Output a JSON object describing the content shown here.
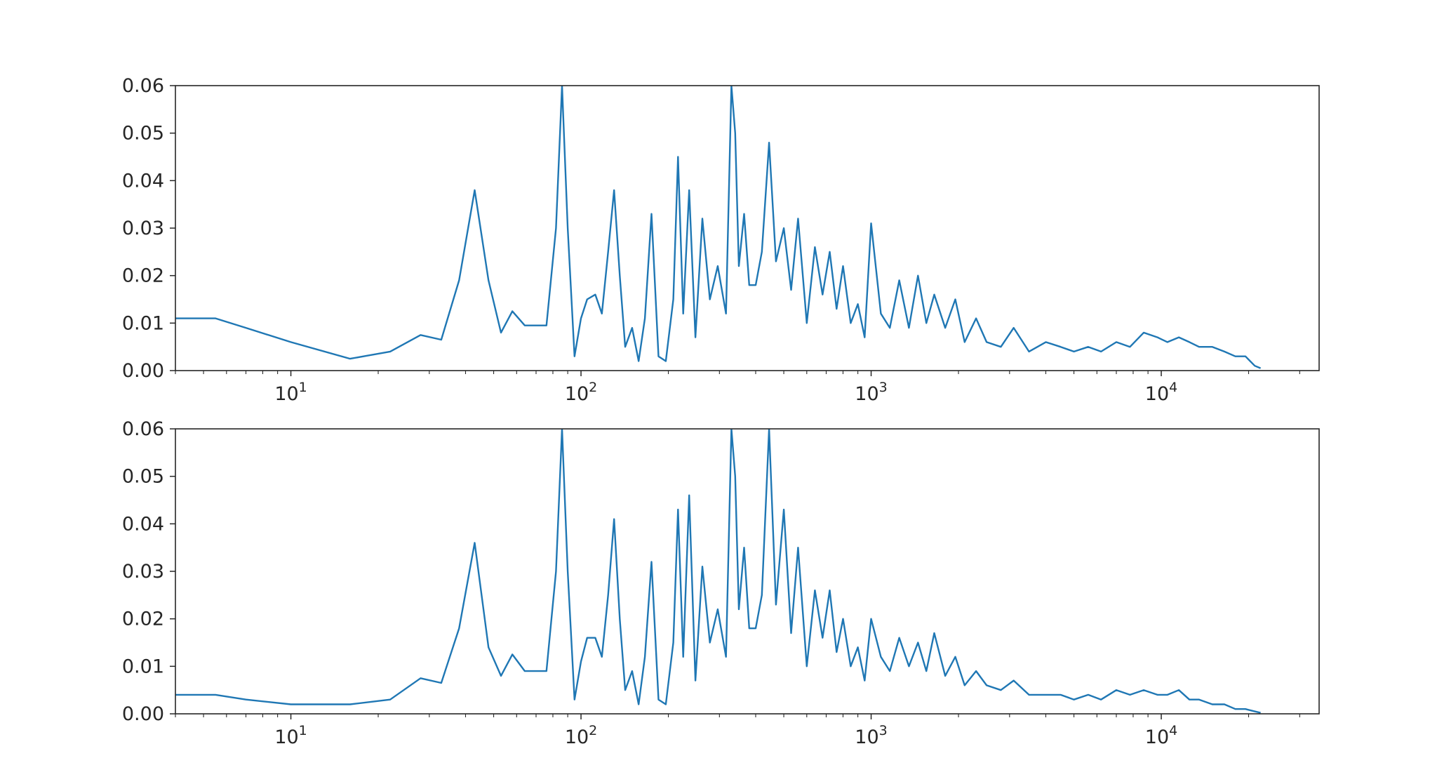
{
  "chart_data": [
    {
      "type": "line",
      "title": "",
      "xlabel": "",
      "ylabel": "",
      "xscale": "log",
      "xlim": [
        4,
        35000
      ],
      "ylim": [
        0,
        0.06
      ],
      "yticks": [
        "0.00",
        "0.01",
        "0.02",
        "0.03",
        "0.04",
        "0.05",
        "0.06"
      ],
      "xticks": [
        {
          "base": "10",
          "exp": "1"
        },
        {
          "base": "10",
          "exp": "2"
        },
        {
          "base": "10",
          "exp": "3"
        },
        {
          "base": "10",
          "exp": "4"
        }
      ],
      "grid": false,
      "color": "#1f77b4",
      "x": [
        4,
        5.5,
        7,
        10,
        16,
        22,
        28,
        33,
        38,
        43,
        48,
        53,
        58,
        64,
        70,
        76,
        82,
        86,
        90,
        95,
        100,
        105,
        112,
        118,
        124,
        130,
        136,
        142,
        150,
        158,
        166,
        175,
        185,
        196,
        208,
        216,
        225,
        236,
        248,
        262,
        278,
        296,
        316,
        330,
        340,
        350,
        365,
        380,
        400,
        420,
        445,
        470,
        500,
        530,
        560,
        600,
        640,
        680,
        720,
        760,
        800,
        850,
        900,
        950,
        1000,
        1080,
        1160,
        1250,
        1350,
        1450,
        1550,
        1650,
        1800,
        1950,
        2100,
        2300,
        2500,
        2800,
        3100,
        3500,
        4000,
        4500,
        5000,
        5600,
        6200,
        7000,
        7800,
        8700,
        9700,
        10500,
        11500,
        12500,
        13500,
        15000,
        16500,
        18000,
        19500,
        21000,
        22000
      ],
      "series": [
        {
          "values": [
            0.011,
            0.011,
            0.009,
            0.006,
            0.0025,
            0.004,
            0.0075,
            0.0065,
            0.019,
            0.038,
            0.019,
            0.008,
            0.0125,
            0.0095,
            0.0095,
            0.0095,
            0.03,
            0.06,
            0.03,
            0.003,
            0.011,
            0.015,
            0.016,
            0.012,
            0.025,
            0.038,
            0.02,
            0.005,
            0.009,
            0.002,
            0.011,
            0.033,
            0.003,
            0.002,
            0.015,
            0.045,
            0.012,
            0.038,
            0.007,
            0.032,
            0.015,
            0.022,
            0.012,
            0.06,
            0.05,
            0.022,
            0.033,
            0.018,
            0.018,
            0.025,
            0.048,
            0.023,
            0.03,
            0.017,
            0.032,
            0.01,
            0.026,
            0.016,
            0.025,
            0.013,
            0.022,
            0.01,
            0.014,
            0.007,
            0.031,
            0.012,
            0.009,
            0.019,
            0.009,
            0.02,
            0.01,
            0.016,
            0.009,
            0.015,
            0.006,
            0.011,
            0.006,
            0.005,
            0.009,
            0.004,
            0.006,
            0.005,
            0.004,
            0.005,
            0.004,
            0.006,
            0.005,
            0.008,
            0.007,
            0.006,
            0.007,
            0.006,
            0.005,
            0.005,
            0.004,
            0.003,
            0.003,
            0.001,
            0.0005
          ]
        }
      ]
    },
    {
      "type": "line",
      "title": "",
      "xlabel": "",
      "ylabel": "",
      "xscale": "log",
      "xlim": [
        4,
        35000
      ],
      "ylim": [
        0,
        0.06
      ],
      "yticks": [
        "0.00",
        "0.01",
        "0.02",
        "0.03",
        "0.04",
        "0.05",
        "0.06"
      ],
      "xticks": [
        {
          "base": "10",
          "exp": "1"
        },
        {
          "base": "10",
          "exp": "2"
        },
        {
          "base": "10",
          "exp": "3"
        },
        {
          "base": "10",
          "exp": "4"
        }
      ],
      "grid": false,
      "color": "#1f77b4",
      "x": [
        4,
        5.5,
        7,
        10,
        16,
        22,
        28,
        33,
        38,
        43,
        48,
        53,
        58,
        64,
        70,
        76,
        82,
        86,
        90,
        95,
        100,
        105,
        112,
        118,
        124,
        130,
        136,
        142,
        150,
        158,
        166,
        175,
        185,
        196,
        208,
        216,
        225,
        236,
        248,
        262,
        278,
        296,
        316,
        330,
        340,
        350,
        365,
        380,
        400,
        420,
        445,
        470,
        500,
        530,
        560,
        600,
        640,
        680,
        720,
        760,
        800,
        850,
        900,
        950,
        1000,
        1080,
        1160,
        1250,
        1350,
        1450,
        1550,
        1650,
        1800,
        1950,
        2100,
        2300,
        2500,
        2800,
        3100,
        3500,
        4000,
        4500,
        5000,
        5600,
        6200,
        7000,
        7800,
        8700,
        9700,
        10500,
        11500,
        12500,
        13500,
        15000,
        16500,
        18000,
        19500,
        21000,
        22000
      ],
      "series": [
        {
          "values": [
            0.004,
            0.004,
            0.003,
            0.002,
            0.002,
            0.003,
            0.0075,
            0.0065,
            0.018,
            0.036,
            0.014,
            0.008,
            0.0125,
            0.009,
            0.009,
            0.009,
            0.03,
            0.06,
            0.03,
            0.003,
            0.011,
            0.016,
            0.016,
            0.012,
            0.025,
            0.041,
            0.02,
            0.005,
            0.009,
            0.002,
            0.012,
            0.032,
            0.003,
            0.002,
            0.015,
            0.043,
            0.012,
            0.046,
            0.007,
            0.031,
            0.015,
            0.022,
            0.012,
            0.06,
            0.05,
            0.022,
            0.035,
            0.018,
            0.018,
            0.025,
            0.06,
            0.023,
            0.043,
            0.017,
            0.035,
            0.01,
            0.026,
            0.016,
            0.026,
            0.013,
            0.02,
            0.01,
            0.014,
            0.007,
            0.02,
            0.012,
            0.009,
            0.016,
            0.01,
            0.015,
            0.009,
            0.017,
            0.008,
            0.012,
            0.006,
            0.009,
            0.006,
            0.005,
            0.007,
            0.004,
            0.004,
            0.004,
            0.003,
            0.004,
            0.003,
            0.005,
            0.004,
            0.005,
            0.004,
            0.004,
            0.005,
            0.003,
            0.003,
            0.002,
            0.002,
            0.001,
            0.001,
            0.0005,
            0.0002
          ]
        }
      ]
    }
  ]
}
